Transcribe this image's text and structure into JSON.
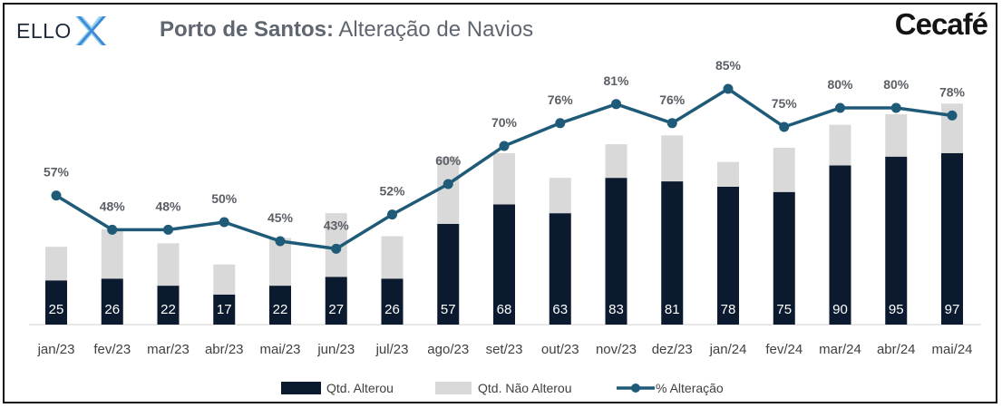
{
  "header": {
    "brand_left": "ELLO",
    "title_bold": "Porto de Santos:",
    "title_regular": " Alteração de Navios",
    "brand_right": "Cecafé"
  },
  "colors": {
    "dark_bar": "#0b1a2e",
    "light_bar": "#d9d9d9",
    "line": "#1f5b78",
    "ello_accent": "#2e7fd1"
  },
  "chart_data": {
    "type": "bar",
    "categories": [
      "jan/23",
      "fev/23",
      "mar/23",
      "abr/23",
      "mai/23",
      "jun/23",
      "jul/23",
      "ago/23",
      "set/23",
      "out/23",
      "nov/23",
      "dez/23",
      "jan/24",
      "fev/24",
      "mar/24",
      "abr/24",
      "mai/24"
    ],
    "series": [
      {
        "name": "Qtd. Alterou",
        "type": "bar",
        "stack": "a",
        "values": [
          25,
          26,
          22,
          17,
          22,
          27,
          26,
          57,
          68,
          63,
          83,
          81,
          78,
          75,
          90,
          95,
          97
        ]
      },
      {
        "name": "Qtd. Não Alterou",
        "type": "bar",
        "stack": "a",
        "values": [
          19,
          28,
          24,
          17,
          27,
          36,
          24,
          38,
          29,
          20,
          19,
          26,
          14,
          25,
          23,
          24,
          28
        ]
      },
      {
        "name": "% Alteração",
        "type": "line",
        "axis": "secondary",
        "values": [
          57,
          48,
          48,
          50,
          45,
          43,
          52,
          60,
          70,
          76,
          81,
          76,
          85,
          75,
          80,
          80,
          78
        ],
        "label_suffix": "%"
      }
    ],
    "legend": {
      "position": "bottom",
      "entries": [
        "Qtd. Alterou",
        "Qtd. Não Alterou",
        "% Alteração"
      ]
    },
    "grid": false,
    "y_axis_visible": false
  }
}
